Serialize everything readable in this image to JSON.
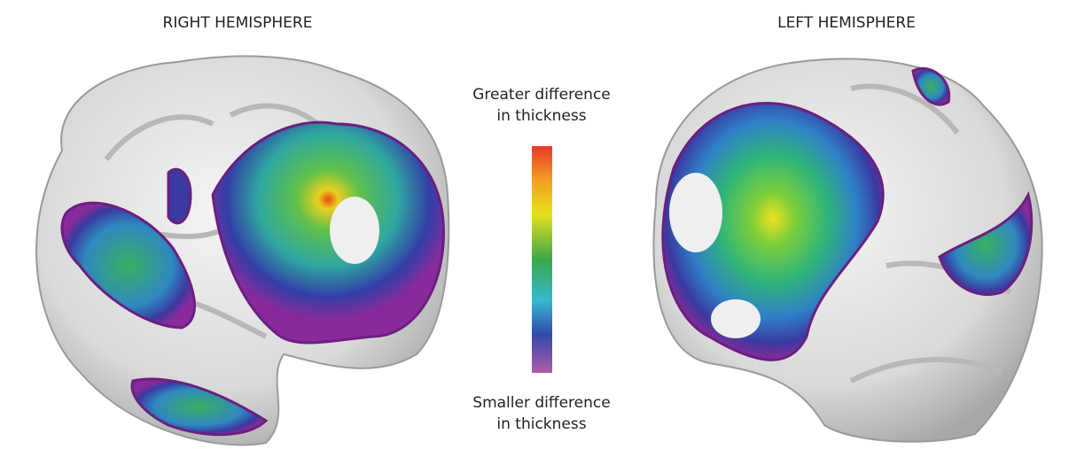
{
  "figure": {
    "right_panel": {
      "title": "RIGHT HEMISPHERE"
    },
    "left_panel": {
      "title": "LEFT HEMISPHERE"
    },
    "legend": {
      "top_label": [
        "Greater difference",
        "in thickness"
      ],
      "bottom_label": [
        "Smaller difference",
        "in thickness"
      ]
    }
  }
}
